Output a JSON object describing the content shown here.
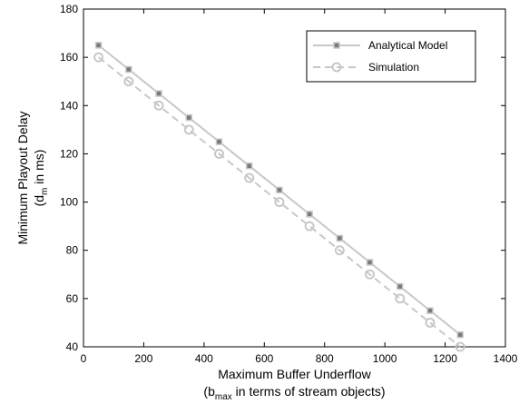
{
  "chart_data": {
    "type": "line",
    "xlabel_line1": "Maximum Buffer Underflow",
    "xlabel_line2_pre": "(b",
    "xlabel_line2_sub": "max",
    "xlabel_line2_post": " in terms of stream objects)",
    "ylabel_line1": "Minimum Playout Delay",
    "ylabel_line2_pre": "(d",
    "ylabel_line2_sub": "m",
    "ylabel_line2_post": " in ms)",
    "xlim": [
      0,
      1400
    ],
    "ylim": [
      40,
      180
    ],
    "xticks": [
      0,
      200,
      400,
      600,
      800,
      1000,
      1200,
      1400
    ],
    "yticks": [
      40,
      60,
      80,
      100,
      120,
      140,
      160,
      180
    ],
    "grid": false,
    "legend_position": "top-right",
    "x": [
      50,
      150,
      250,
      350,
      450,
      550,
      650,
      750,
      850,
      950,
      1050,
      1150,
      1250
    ],
    "series": [
      {
        "name": "Analytical Model",
        "values": [
          165,
          155,
          145,
          135,
          125,
          115,
          105,
          95,
          85,
          75,
          65,
          55,
          45
        ],
        "line_color": "#c8c8c8",
        "marker_color": "#7a7a7a",
        "line_style": "solid",
        "marker": "square"
      },
      {
        "name": "Simulation",
        "values": [
          160,
          150,
          140,
          130,
          120,
          110,
          100,
          90,
          80,
          70,
          60,
          50,
          40
        ],
        "line_color": "#c8c8c8",
        "marker_color": "#c8c8c8",
        "line_style": "dashed",
        "marker": "circle"
      }
    ]
  }
}
